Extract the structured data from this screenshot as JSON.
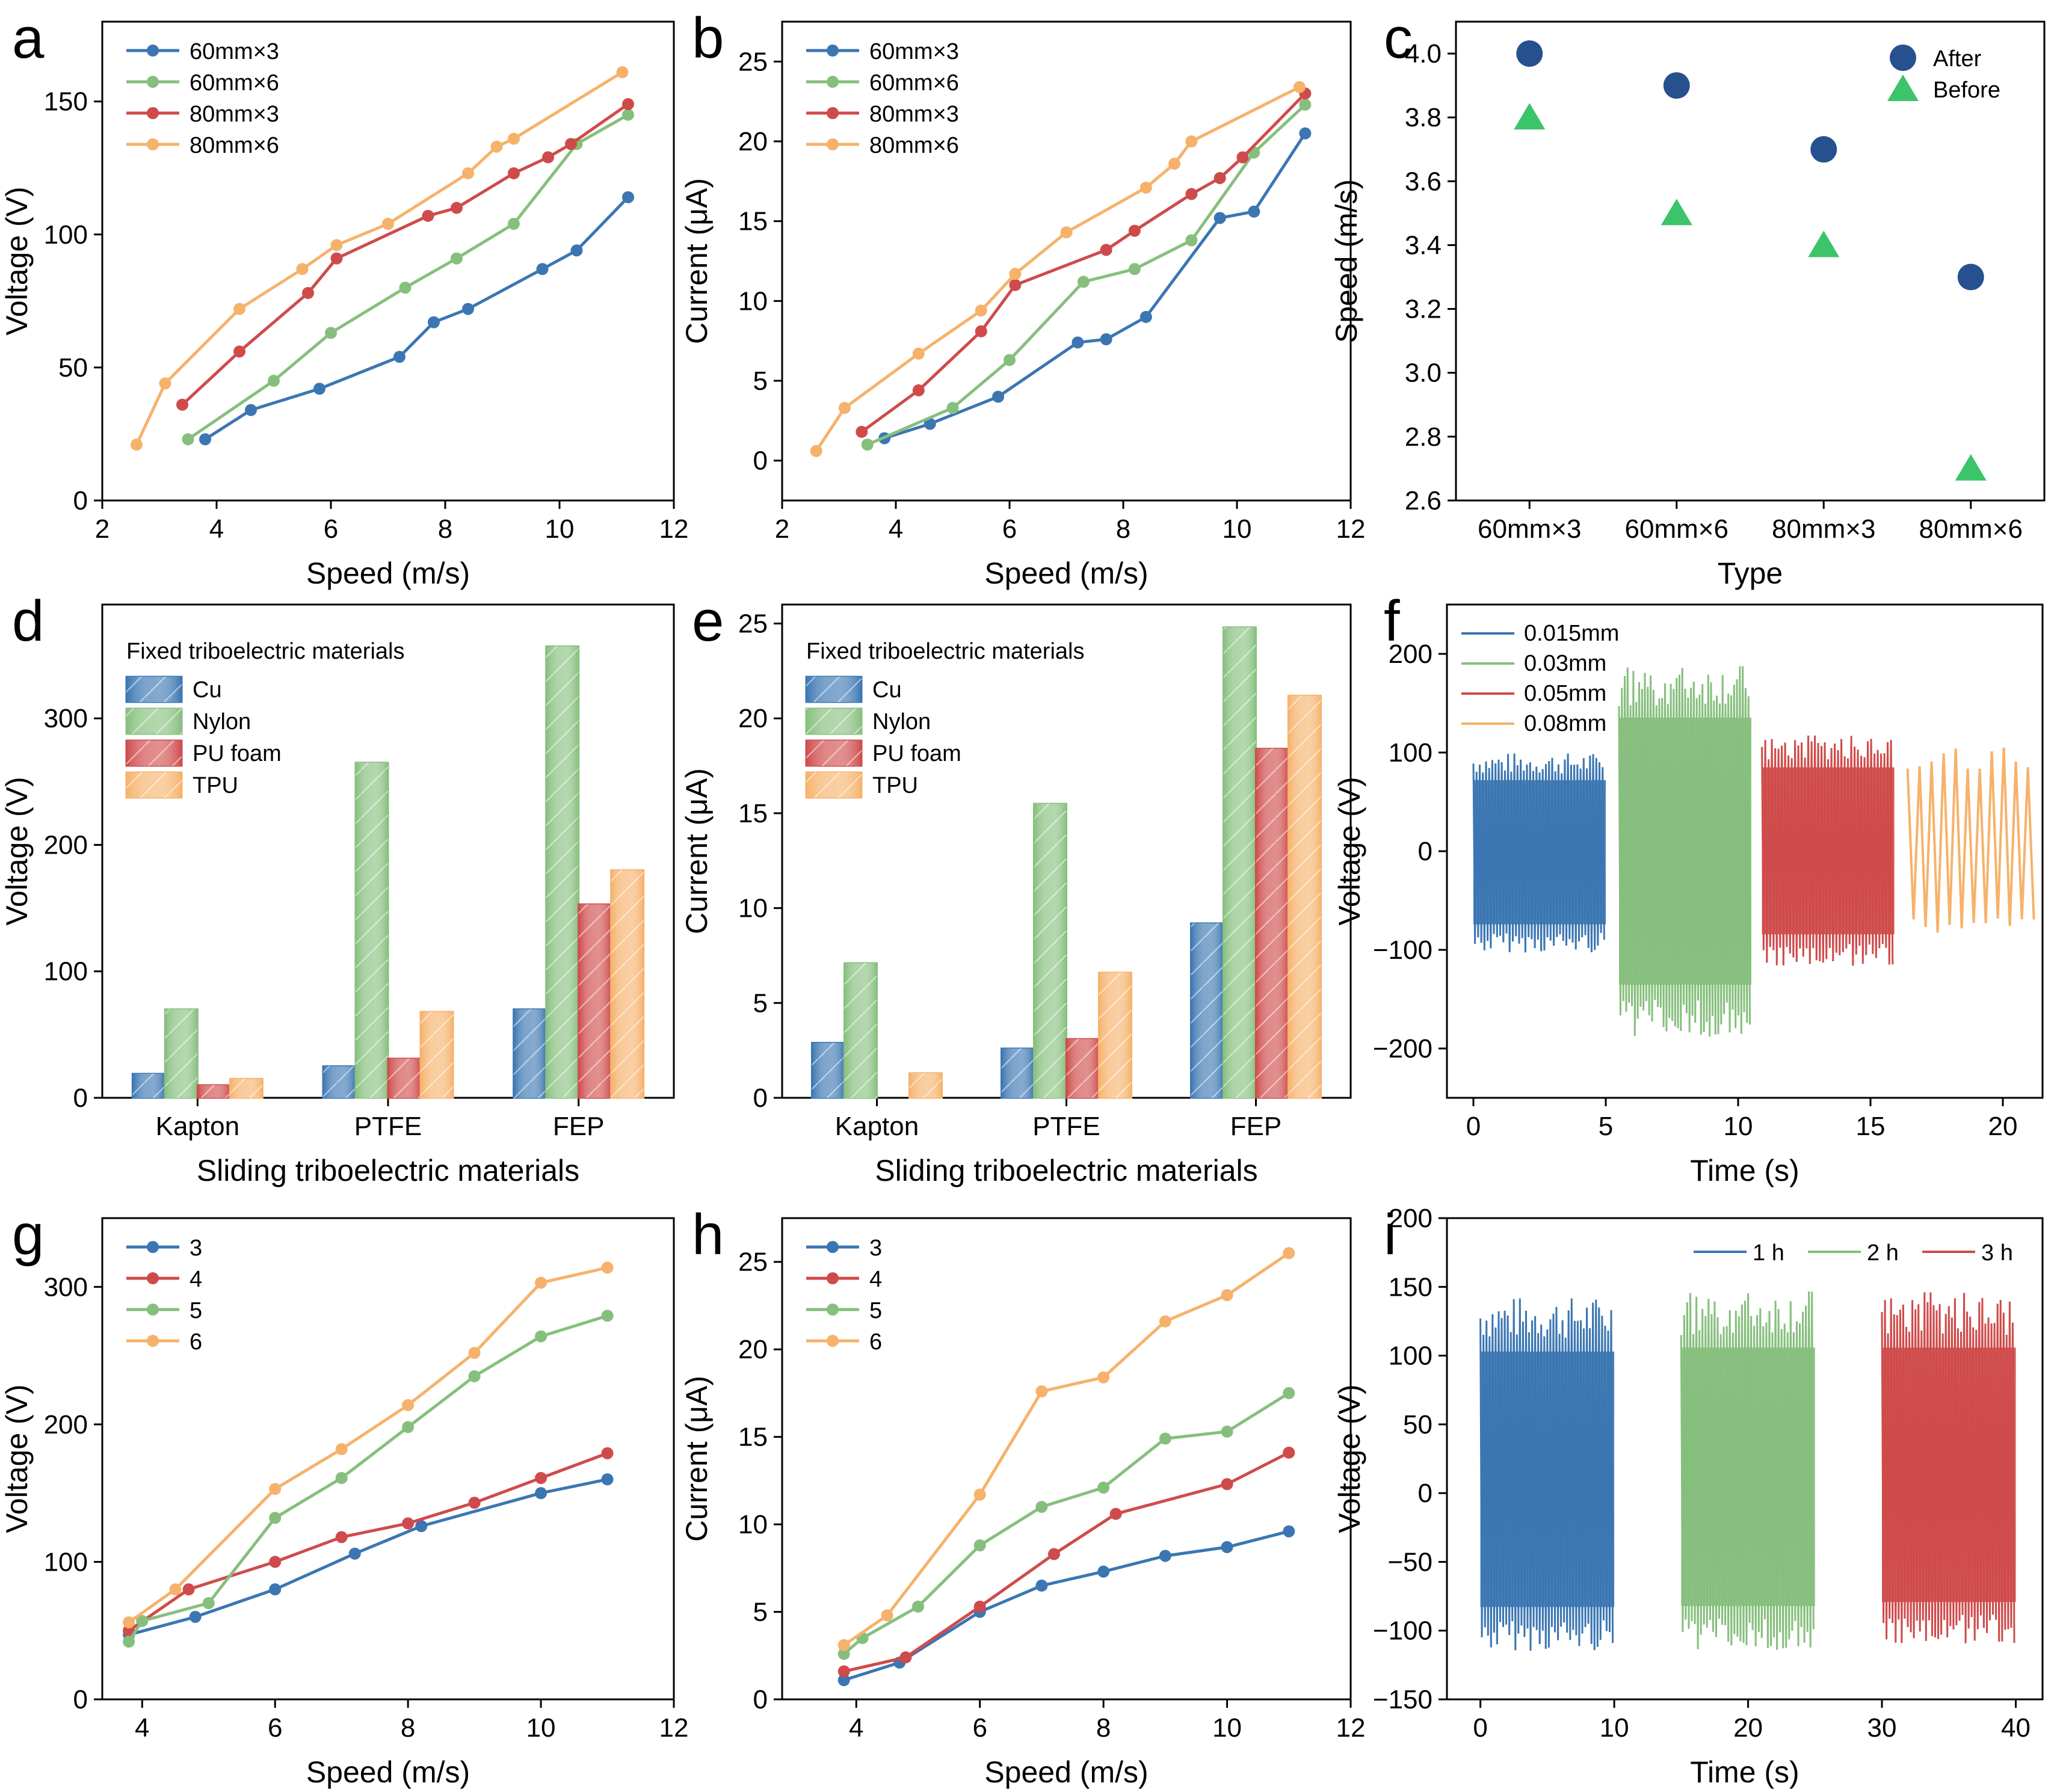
{
  "colors": {
    "blue": "#3b76b2",
    "green": "#86bf7d",
    "red": "#cf4b4b",
    "orange": "#f6b26b",
    "dark_blue": "#27508f",
    "bright_green": "#3cc46a"
  },
  "chart_data": [
    {
      "id": "a",
      "panel_label": "a",
      "type": "line",
      "xlabel": "Speed (m/s)",
      "ylabel": "Voltage (V)",
      "xlim": [
        2,
        12
      ],
      "ylim": [
        0,
        180
      ],
      "xticks": [
        2,
        4,
        6,
        8,
        10,
        12
      ],
      "yticks": [
        0,
        50,
        100,
        150
      ],
      "legend": "top-left",
      "series": [
        {
          "name": "60mm×3",
          "color": "blue",
          "x": [
            3.8,
            4.6,
            5.8,
            7.2,
            7.8,
            8.4,
            9.7,
            10.3,
            11.2
          ],
          "y": [
            23,
            34,
            42,
            54,
            67,
            72,
            87,
            94,
            114
          ]
        },
        {
          "name": "60mm×6",
          "color": "green",
          "x": [
            3.5,
            5.0,
            6.0,
            7.3,
            8.2,
            9.2,
            10.3,
            11.2
          ],
          "y": [
            23,
            45,
            63,
            80,
            91,
            104,
            134,
            145
          ]
        },
        {
          "name": "80mm×3",
          "color": "red",
          "x": [
            3.4,
            4.4,
            5.6,
            6.1,
            7.7,
            8.2,
            9.2,
            9.8,
            10.2,
            11.2
          ],
          "y": [
            36,
            56,
            78,
            91,
            107,
            110,
            123,
            129,
            134,
            149
          ]
        },
        {
          "name": "80mm×6",
          "color": "orange",
          "x": [
            2.6,
            3.1,
            4.4,
            5.5,
            6.1,
            7.0,
            8.4,
            8.9,
            9.2,
            11.1
          ],
          "y": [
            21,
            44,
            72,
            87,
            96,
            104,
            123,
            133,
            136,
            161
          ]
        }
      ]
    },
    {
      "id": "b",
      "panel_label": "b",
      "type": "line",
      "xlabel": "Speed (m/s)",
      "ylabel": "Current (μA)",
      "xlim": [
        2,
        12
      ],
      "ylim": [
        -2.5,
        27.5
      ],
      "xticks": [
        2,
        4,
        6,
        8,
        10,
        12
      ],
      "yticks": [
        0,
        5,
        10,
        15,
        20,
        25
      ],
      "legend": "top-left",
      "series": [
        {
          "name": "60mm×3",
          "color": "blue",
          "x": [
            3.8,
            4.6,
            5.8,
            7.2,
            7.7,
            8.4,
            9.7,
            10.3,
            11.2
          ],
          "y": [
            1.4,
            2.3,
            4.0,
            7.4,
            7.6,
            9.0,
            15.2,
            15.6,
            20.5
          ]
        },
        {
          "name": "60mm×6",
          "color": "green",
          "x": [
            3.5,
            5.0,
            6.0,
            7.3,
            8.2,
            9.2,
            10.3,
            11.2
          ],
          "y": [
            1.0,
            3.3,
            6.3,
            11.2,
            12.0,
            13.8,
            19.3,
            22.3
          ]
        },
        {
          "name": "80mm×3",
          "color": "red",
          "x": [
            3.4,
            4.4,
            5.5,
            6.1,
            7.7,
            8.2,
            9.2,
            9.7,
            10.1,
            11.2
          ],
          "y": [
            1.8,
            4.4,
            8.1,
            11.0,
            13.2,
            14.4,
            16.7,
            17.7,
            19.0,
            23.0
          ]
        },
        {
          "name": "80mm×6",
          "color": "orange",
          "x": [
            2.6,
            3.1,
            4.4,
            5.5,
            6.1,
            7.0,
            8.4,
            8.9,
            9.2,
            11.1
          ],
          "y": [
            0.6,
            3.3,
            6.7,
            9.4,
            11.7,
            14.3,
            17.1,
            18.6,
            20.0,
            23.4
          ]
        }
      ]
    },
    {
      "id": "c",
      "panel_label": "c",
      "type": "scatter",
      "xlabel": "Type",
      "ylabel": "Speed (m/s)",
      "ylim": [
        2.6,
        4.1
      ],
      "categories": [
        "60mm×3",
        "60mm×6",
        "80mm×3",
        "80mm×6"
      ],
      "yticks": [
        2.6,
        2.8,
        3.0,
        3.2,
        3.4,
        3.6,
        3.8,
        4.0
      ],
      "legend": "top-right",
      "series": [
        {
          "name": "After",
          "color": "dark_blue",
          "marker": "circle",
          "values": [
            4.0,
            3.9,
            3.7,
            3.3
          ]
        },
        {
          "name": "Before",
          "color": "bright_green",
          "marker": "triangle",
          "values": [
            3.8,
            3.5,
            3.4,
            2.7
          ]
        }
      ]
    },
    {
      "id": "d",
      "panel_label": "d",
      "type": "bar",
      "xlabel": "Sliding triboelectric materials",
      "ylabel": "Voltage (V)",
      "ylim": [
        0,
        390
      ],
      "yticks": [
        0,
        100,
        200,
        300
      ],
      "categories": [
        "Kapton",
        "PTFE",
        "FEP"
      ],
      "legend": "top-left",
      "legend_title": "Fixed triboelectric materials",
      "series": [
        {
          "name": "Cu",
          "color": "blue",
          "values": [
            19,
            25,
            70
          ]
        },
        {
          "name": "Nylon",
          "color": "green",
          "values": [
            70,
            265,
            357
          ]
        },
        {
          "name": "PU foam",
          "color": "red",
          "values": [
            10,
            31,
            153
          ]
        },
        {
          "name": "TPU",
          "color": "orange",
          "values": [
            15,
            68,
            180
          ]
        }
      ]
    },
    {
      "id": "e",
      "panel_label": "e",
      "type": "bar",
      "xlabel": "Sliding triboelectric materials",
      "ylabel": "Current (μA)",
      "ylim": [
        0,
        26
      ],
      "yticks": [
        0,
        5,
        10,
        15,
        20,
        25
      ],
      "categories": [
        "Kapton",
        "PTFE",
        "FEP"
      ],
      "legend": "top-left",
      "legend_title": "Fixed triboelectric materials",
      "series": [
        {
          "name": "Cu",
          "color": "blue",
          "values": [
            2.9,
            2.6,
            9.2
          ]
        },
        {
          "name": "Nylon",
          "color": "green",
          "values": [
            7.1,
            15.5,
            24.8
          ]
        },
        {
          "name": "PU foam",
          "color": "red",
          "values": [
            0,
            3.1,
            18.4
          ]
        },
        {
          "name": "TPU",
          "color": "orange",
          "values": [
            1.3,
            6.6,
            21.2
          ]
        }
      ]
    },
    {
      "id": "f",
      "panel_label": "f",
      "type": "line",
      "xlabel": "Time (s)",
      "ylabel": "Voltage (V)",
      "xlim": [
        -1,
        21.5
      ],
      "ylim": [
        -250,
        250
      ],
      "xticks": [
        0,
        5,
        10,
        15,
        20
      ],
      "yticks": [
        -200,
        -100,
        0,
        100,
        200
      ],
      "legend": "top-left",
      "series": [
        {
          "name": "0.015mm",
          "color": "blue",
          "t_range": [
            0,
            5
          ],
          "max": 100,
          "min": -103,
          "cycles": 42
        },
        {
          "name": "0.03mm",
          "color": "green",
          "t_range": [
            5.5,
            10.5
          ],
          "max": 188,
          "min": -188,
          "cycles": 46
        },
        {
          "name": "0.05mm",
          "color": "red",
          "t_range": [
            10.9,
            15.9
          ],
          "max": 118,
          "min": -117,
          "cycles": 40
        },
        {
          "name": "0.08mm",
          "color": "orange",
          "t_range": [
            16.4,
            21.4
          ],
          "max": 106,
          "min": -83,
          "cycles": 11
        }
      ]
    },
    {
      "id": "g",
      "panel_label": "g",
      "type": "line",
      "xlabel": "Speed (m/s)",
      "ylabel": "Voltage (V)",
      "xlim": [
        3.4,
        12
      ],
      "ylim": [
        0,
        350
      ],
      "xticks": [
        4,
        6,
        8,
        10,
        12
      ],
      "yticks": [
        0,
        100,
        200,
        300
      ],
      "legend": "top-left",
      "series": [
        {
          "name": "3",
          "color": "blue",
          "x": [
            3.8,
            4.8,
            6.0,
            7.2,
            8.2,
            10.0,
            11.0
          ],
          "y": [
            47,
            60,
            80,
            106,
            126,
            150,
            160
          ]
        },
        {
          "name": "4",
          "color": "red",
          "x": [
            3.8,
            4.7,
            6.0,
            7.0,
            8.0,
            9.0,
            10.0,
            11.0
          ],
          "y": [
            50,
            80,
            100,
            118,
            128,
            143,
            161,
            179
          ]
        },
        {
          "name": "5",
          "color": "green",
          "x": [
            3.8,
            4.0,
            5.0,
            6.0,
            7.0,
            8.0,
            9.0,
            10.0,
            11.0
          ],
          "y": [
            42,
            57,
            70,
            132,
            161,
            198,
            235,
            264,
            279
          ]
        },
        {
          "name": "6",
          "color": "orange",
          "x": [
            3.8,
            4.5,
            6.0,
            7.0,
            8.0,
            9.0,
            10.0,
            11.0
          ],
          "y": [
            56,
            80,
            153,
            182,
            214,
            252,
            303,
            314
          ]
        }
      ]
    },
    {
      "id": "h",
      "panel_label": "h",
      "type": "line",
      "xlabel": "Speed (m/s)",
      "ylabel": "Current (μA)",
      "xlim": [
        2.8,
        12
      ],
      "ylim": [
        0,
        27.5
      ],
      "xticks": [
        4,
        6,
        8,
        10,
        12
      ],
      "yticks": [
        0,
        5,
        10,
        15,
        20,
        25
      ],
      "legend": "top-left",
      "series": [
        {
          "name": "3",
          "color": "blue",
          "x": [
            3.8,
            4.7,
            6.0,
            7.0,
            8.0,
            9.0,
            10.0,
            11.0
          ],
          "y": [
            1.1,
            2.1,
            5.0,
            6.5,
            7.3,
            8.2,
            8.7,
            9.6
          ]
        },
        {
          "name": "4",
          "color": "red",
          "x": [
            3.8,
            4.8,
            6.0,
            7.2,
            8.2,
            10.0,
            11.0
          ],
          "y": [
            1.6,
            2.4,
            5.3,
            8.3,
            10.6,
            12.3,
            14.1
          ]
        },
        {
          "name": "5",
          "color": "green",
          "x": [
            3.8,
            4.1,
            5.0,
            6.0,
            7.0,
            8.0,
            9.0,
            10.0,
            11.0
          ],
          "y": [
            2.6,
            3.5,
            5.3,
            8.8,
            11.0,
            12.1,
            14.9,
            15.3,
            17.5
          ]
        },
        {
          "name": "6",
          "color": "orange",
          "x": [
            3.8,
            4.5,
            6.0,
            7.0,
            8.0,
            9.0,
            10.0,
            11.0
          ],
          "y": [
            3.1,
            4.8,
            11.7,
            17.6,
            18.4,
            21.6,
            23.1,
            25.5
          ]
        }
      ]
    },
    {
      "id": "i",
      "panel_label": "i",
      "type": "line",
      "xlabel": "Time (s)",
      "ylabel": "Voltage (V)",
      "xlim": [
        -2.5,
        42
      ],
      "ylim": [
        -150,
        200
      ],
      "xticks": [
        0,
        10,
        20,
        30,
        40
      ],
      "yticks": [
        -150,
        -100,
        -50,
        0,
        50,
        100,
        150,
        200
      ],
      "legend": "top-right",
      "series": [
        {
          "name": "1 h",
          "color": "blue",
          "t_range": [
            0,
            10
          ],
          "max": 143,
          "min": -115,
          "cycles": 44
        },
        {
          "name": "2 h",
          "color": "green",
          "t_range": [
            15,
            25
          ],
          "max": 147,
          "min": -114,
          "cycles": 44
        },
        {
          "name": "3 h",
          "color": "red",
          "t_range": [
            30,
            40
          ],
          "max": 147,
          "min": -110,
          "cycles": 44
        }
      ]
    }
  ]
}
